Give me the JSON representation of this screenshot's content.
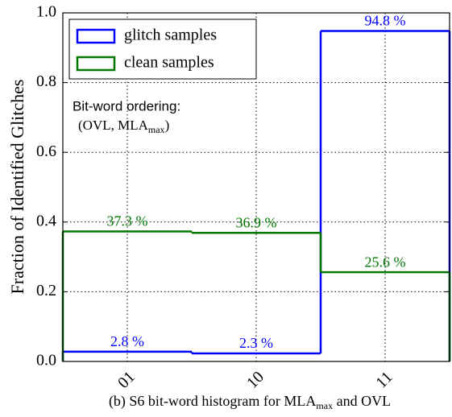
{
  "chart_data": {
    "type": "step-histogram",
    "categories": [
      "01",
      "10",
      "11"
    ],
    "series": [
      {
        "name": "glitch samples",
        "color": "#0000ff",
        "values": [
          0.028,
          0.023,
          0.948
        ],
        "value_labels": [
          "2.8 %",
          "2.3 %",
          "94.8 %"
        ]
      },
      {
        "name": "clean samples",
        "color": "#007700",
        "values": [
          0.373,
          0.369,
          0.256
        ],
        "value_labels": [
          "37.3 %",
          "36.9 %",
          "25.6 %"
        ]
      }
    ],
    "ylabel": "Fraction of Identified Glitches",
    "ylim": [
      0,
      1
    ],
    "yticks": [
      {
        "value": 0,
        "label": "0.0"
      },
      0.2,
      0.4,
      0.6,
      0.8,
      {
        "value": 1,
        "label": "1.0"
      }
    ],
    "grid": true,
    "legend": "upper left",
    "annotation": {
      "line1": "Bit-word ordering:",
      "line2": "(OVL, MLA",
      "line2_sub": "max",
      "line2_end": ")"
    },
    "caption": {
      "text": "(b) S6 bit-word histogram for MLA",
      "sub": "max",
      "end": " and OVL"
    }
  }
}
